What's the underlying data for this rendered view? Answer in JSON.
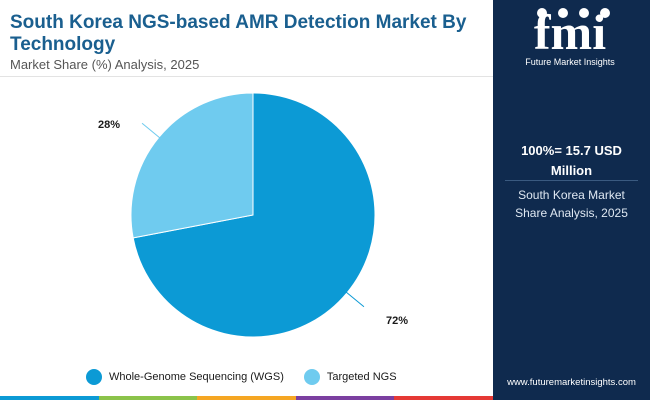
{
  "header": {
    "title": "South Korea NGS-based AMR Detection Market By Technology",
    "subtitle": "Market Share (%) Analysis, 2025"
  },
  "chart_data": {
    "type": "pie",
    "title": "South Korea NGS-based AMR Detection Market By Technology",
    "subtitle": "Market Share (%) Analysis, 2025",
    "categories": [
      "Whole-Genome Sequencing (WGS)",
      "Targeted NGS"
    ],
    "values": [
      72,
      28
    ],
    "data_labels": [
      "72%",
      "28%"
    ],
    "colors": [
      "#0c9ad5",
      "#6fcbef"
    ],
    "legend_position": "bottom"
  },
  "sidebar": {
    "logo_letters": "fmi",
    "logo_caption": "Future Market Insights",
    "total_value": "100%= 15.7 USD Million",
    "summary": "South Korea Market Share Analysis, 2025",
    "website": "www.futuremarketinsights.com"
  },
  "footer_colors": [
    "#0c9ad5",
    "#8bc34a",
    "#f5a623",
    "#7b3fa0",
    "#e53935"
  ]
}
